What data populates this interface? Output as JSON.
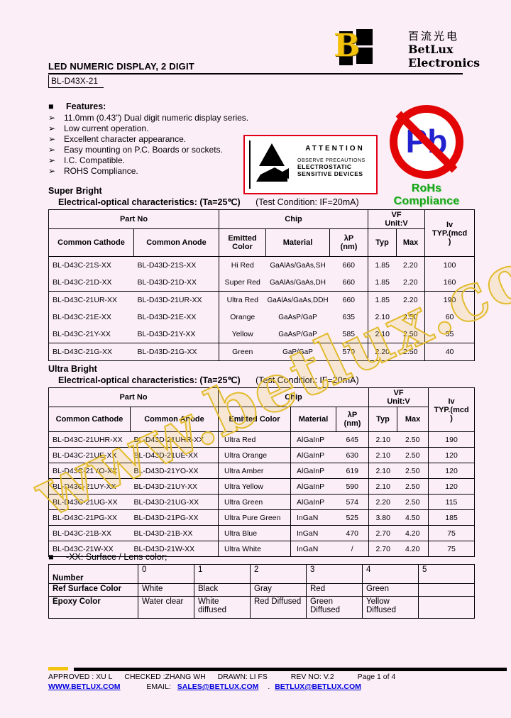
{
  "logo": {
    "letter": "B",
    "company_cn": "百流光电",
    "company_en": "BetLux Electronics"
  },
  "header": {
    "title": "LED NUMERIC DISPLAY, 2 DIGIT",
    "part_number": "BL-D43X-21"
  },
  "features": {
    "bullet_square": "■",
    "heading": "Features:",
    "bullet": "➢",
    "items": [
      "11.0mm (0.43\") Dual digit numeric display series.",
      "Low current operation.",
      "Excellent character appearance.",
      "Easy mounting on P.C. Boards or sockets.",
      "I.C. Compatible.",
      "ROHS Compliance."
    ]
  },
  "esd": {
    "title": "ATTENTION",
    "line1": "OBSERVE PRECAUTIONS",
    "line2": "ELECTROSTATIC",
    "line3": "SENSITIVE DEVICES"
  },
  "rohs": {
    "symbol": "Pb",
    "label": "RoHs Compliance"
  },
  "super_bright": {
    "heading": "Super Bright",
    "subtitle_bold": "Electrical-optical characteristics: (Ta=25℃)",
    "subtitle_normal": "(Test Condition: IF=20mA)",
    "table": {
      "part_no": "Part No",
      "chip": "Chip",
      "vf": "VF\nUnit:V",
      "iv": "Iv\nTYP.(mcd\n)",
      "columns": [
        "Common Cathode",
        "Common Anode",
        "Emitted Color",
        "Material",
        "λP\n(nm)",
        "Typ",
        "Max"
      ],
      "rows": [
        {
          "cells": [
            "BL-D43C-21S-XX",
            "BL-D43D-21S-XX",
            "Hi Red",
            "GaAlAs/GaAs,SH",
            "660",
            "1.85",
            "2.20",
            "100"
          ],
          "group_end": false
        },
        {
          "cells": [
            "BL-D43C-21D-XX",
            "BL-D43D-21D-XX",
            "Super Red",
            "GaAlAs/GaAs,DH",
            "660",
            "1.85",
            "2.20",
            "160"
          ],
          "group_end": true
        },
        {
          "cells": [
            "BL-D43C-21UR-XX",
            "BL-D43D-21UR-XX",
            "Ultra Red",
            "GaAlAs/GaAs,DDH",
            "660",
            "1.85",
            "2.20",
            "190"
          ],
          "group_end": false
        },
        {
          "cells": [
            "BL-D43C-21E-XX",
            "BL-D43D-21E-XX",
            "Orange",
            "GaAsP/GaP",
            "635",
            "2.10",
            "2.50",
            "60"
          ],
          "group_end": false
        },
        {
          "cells": [
            "BL-D43C-21Y-XX",
            "BL-D43D-21Y-XX",
            "Yellow",
            "GaAsP/GaP",
            "585",
            "2.10",
            "2.50",
            "55"
          ],
          "group_end": true
        },
        {
          "cells": [
            "BL-D43C-21G-XX",
            "BL-D43D-21G-XX",
            "Green",
            "GaP/GaP",
            "570",
            "2.20",
            "2.50",
            "40"
          ],
          "group_end": true
        }
      ]
    }
  },
  "ultra_bright": {
    "heading": "Ultra Bright",
    "subtitle_bold": "Electrical-optical characteristics: (Ta=25℃)",
    "subtitle_normal": "(Test Condition: IF=20mA)",
    "table": {
      "part_no": "Part No",
      "chip": "Chip",
      "vf": "VF\nUnit:V",
      "iv": "Iv\nTYP.(mcd\n)",
      "columns": [
        "Common Cathode",
        "Common Anode",
        "Emitted Color",
        "Material",
        "λP\n(nm)",
        "Typ",
        "Max"
      ],
      "rows": [
        {
          "cells": [
            "BL-D43C-21UHR-XX",
            "BL-D43D-21UHR-XX",
            "Ultra Red",
            "AlGaInP",
            "645",
            "2.10",
            "2.50",
            "190"
          ],
          "group_end": false
        },
        {
          "cells": [
            "BL-D43C-21UE-XX",
            "BL-D43D-21UE-XX",
            "Ultra Orange",
            "AlGaInP",
            "630",
            "2.10",
            "2.50",
            "120"
          ],
          "group_end": false
        },
        {
          "cells": [
            "BL-D43C-21YO-XX",
            "BL-D43D-21YO-XX",
            "Ultra Amber",
            "AlGaInP",
            "619",
            "2.10",
            "2.50",
            "120"
          ],
          "group_end": false
        },
        {
          "cells": [
            "BL-D43C-21UY-XX",
            "BL-D43D-21UY-XX",
            "Ultra Yellow",
            "AlGaInP",
            "590",
            "2.10",
            "2.50",
            "120"
          ],
          "group_end": false
        },
        {
          "cells": [
            "BL-D43C-21UG-XX",
            "BL-D43D-21UG-XX",
            "Ultra Green",
            "AlGaInP",
            "574",
            "2.20",
            "2.50",
            "115"
          ],
          "group_end": false
        },
        {
          "cells": [
            "BL-D43C-21PG-XX",
            "BL-D43D-21PG-XX",
            "Ultra Pure Green",
            "InGaN",
            "525",
            "3.80",
            "4.50",
            "185"
          ],
          "group_end": false
        },
        {
          "cells": [
            "BL-D43C-21B-XX",
            "BL-D43D-21B-XX",
            "Ultra Blue",
            "InGaN",
            "470",
            "2.70",
            "4.20",
            "75"
          ],
          "group_end": false
        },
        {
          "cells": [
            "BL-D43C-21W-XX",
            "BL-D43D-21W-XX",
            "Ultra White",
            "InGaN",
            "/",
            "2.70",
            "4.20",
            "75"
          ],
          "group_end": false
        }
      ]
    }
  },
  "lens": {
    "bullet_square": "■",
    "note": "-XX: Surface / Lens color;",
    "table": {
      "header_label": "Number",
      "numbers": [
        "0",
        "1",
        "2",
        "3",
        "4",
        "5"
      ],
      "rows": [
        {
          "label": "Ref Surface Color",
          "cells": [
            "White",
            "Black",
            "Gray",
            "Red",
            "Green",
            ""
          ]
        },
        {
          "label": "Epoxy Color",
          "cells": [
            "Water clear",
            "White diffused",
            "Red Diffused",
            "Green Diffused",
            "Yellow Diffused",
            ""
          ]
        }
      ]
    }
  },
  "watermark": "www.betlux.com",
  "footer": {
    "approved": "APPROVED : XU L",
    "checked": "CHECKED :ZHANG WH",
    "drawn": "DRAWN: LI FS",
    "rev": "REV NO: V.2",
    "page": "Page 1 of 4",
    "website": "WWW.BETLUX.COM",
    "email_label": "EMAIL:",
    "email1": "SALES@BETLUX.COM",
    "separator": ".",
    "email2": "BETLUX@BETLUX.COM"
  },
  "colors": {
    "background": "#fceef7",
    "accent_yellow": "#f2c40e",
    "watermark_gold": "#e2bc2e",
    "attention_red": "#e00016",
    "pb_blue": "#2121cf",
    "rohs_green": "#17a317",
    "link_blue": "#0000dd"
  }
}
